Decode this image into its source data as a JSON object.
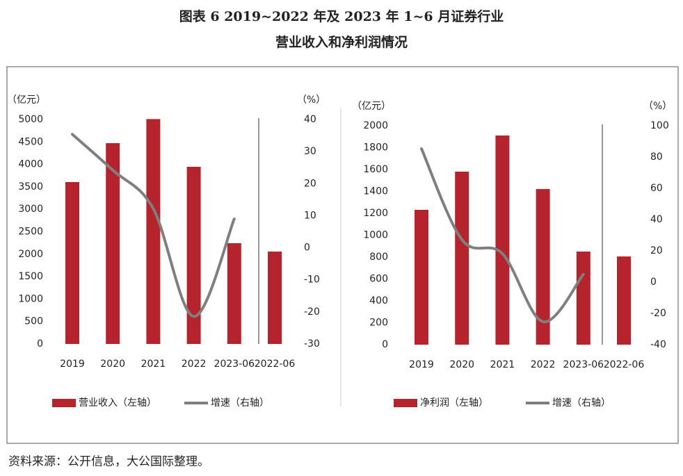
{
  "title": [
    "图表 6  2019~2022 年及 2023 年 1~6 月证券行业",
    "营业收入和净利润情况"
  ],
  "source": "资料来源：公开信息，大公国际整理。",
  "chart_data": [
    {
      "type": "bar",
      "ylabel": "（亿元）",
      "y2label": "（%）",
      "categories": [
        "2019",
        "2020",
        "2021",
        "2022",
        "2023-06",
        "2022-06"
      ],
      "series": [
        {
          "name": "营业收入（左轴）",
          "color": "#b5232d",
          "values": [
            3607,
            4474,
            5010,
            3947,
            2245,
            2059
          ]
        },
        {
          "name": "增速（右轴）",
          "color": "#7f7f7f",
          "type": "line",
          "axis": "y2",
          "values": [
            35.4,
            24.2,
            12.2,
            -21.4,
            9.0,
            null
          ]
        }
      ],
      "ylim": [
        0,
        5000
      ],
      "yticks": [
        0,
        500,
        1000,
        1500,
        2000,
        2500,
        3000,
        3500,
        4000,
        4500,
        5000
      ],
      "y2lim": [
        -30,
        40
      ],
      "y2ticks": [
        -30,
        -20,
        -10,
        0,
        10,
        20,
        30,
        40
      ]
    },
    {
      "type": "bar",
      "ylabel": "（亿元）",
      "y2label": "（%）",
      "categories": [
        "2019",
        "2020",
        "2021",
        "2022",
        "2023-06",
        "2022-06"
      ],
      "series": [
        {
          "name": "净利润（左轴）",
          "color": "#b5232d",
          "values": [
            1232,
            1581,
            1911,
            1422,
            851,
            806
          ]
        },
        {
          "name": "增速（右轴）",
          "color": "#7f7f7f",
          "type": "line",
          "axis": "y2",
          "values": [
            85.3,
            27.1,
            18.2,
            -25.3,
            5.0,
            null
          ]
        }
      ],
      "ylim": [
        0,
        2000
      ],
      "yticks": [
        0,
        200,
        400,
        600,
        800,
        1000,
        1200,
        1400,
        1600,
        1800,
        2000
      ],
      "y2lim": [
        -40,
        100
      ],
      "y2ticks": [
        -40,
        -20,
        0,
        20,
        40,
        60,
        80,
        100
      ]
    }
  ]
}
